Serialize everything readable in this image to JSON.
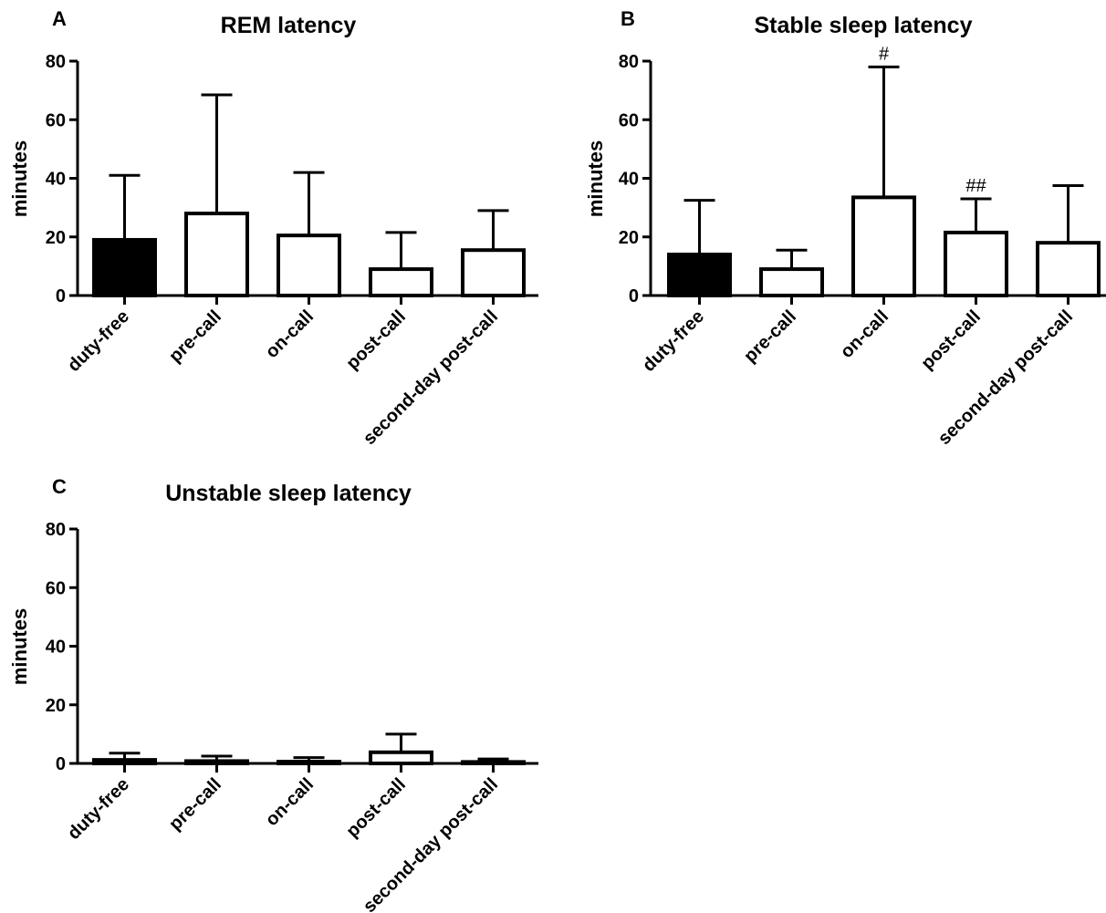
{
  "chart_data": [
    {
      "panel": "A",
      "type": "bar",
      "title": "REM latency",
      "ylabel": "minutes",
      "xlabel": "",
      "ylim": [
        0,
        80
      ],
      "yticks": [
        "0",
        "20",
        "40",
        "60",
        "80"
      ],
      "categories": [
        "duty-free",
        "pre-call",
        "on-call",
        "post-call",
        "second-day post-call"
      ],
      "values": [
        19,
        28,
        20.5,
        9,
        15.5
      ],
      "errors_upper": [
        41,
        68.5,
        42,
        21.5,
        29
      ],
      "fill": [
        "#000000",
        "#ffffff",
        "#ffffff",
        "#ffffff",
        "#ffffff"
      ],
      "annotations": [
        "",
        "",
        "",
        "",
        ""
      ],
      "grid": false
    },
    {
      "panel": "B",
      "type": "bar",
      "title": "Stable sleep latency",
      "ylabel": "minutes",
      "xlabel": "",
      "ylim": [
        0,
        80
      ],
      "yticks": [
        "0",
        "20",
        "40",
        "60",
        "80"
      ],
      "categories": [
        "duty-free",
        "pre-call",
        "on-call",
        "post-call",
        "second-day post-call"
      ],
      "values": [
        14,
        9,
        33.5,
        21.5,
        18
      ],
      "errors_upper": [
        32.5,
        15.5,
        78,
        33,
        37.5
      ],
      "fill": [
        "#000000",
        "#ffffff",
        "#ffffff",
        "#ffffff",
        "#ffffff"
      ],
      "annotations": [
        "",
        "",
        "#",
        "##",
        ""
      ],
      "grid": false
    },
    {
      "panel": "C",
      "type": "bar",
      "title": "Unstable sleep latency",
      "ylabel": "minutes",
      "xlabel": "",
      "ylim": [
        0,
        80
      ],
      "yticks": [
        "0",
        "20",
        "40",
        "60",
        "80"
      ],
      "categories": [
        "duty-free",
        "pre-call",
        "on-call",
        "post-call",
        "second-day post-call"
      ],
      "values": [
        1.2,
        0.8,
        0.6,
        3.8,
        0.5
      ],
      "errors_upper": [
        3.5,
        2.5,
        2,
        10,
        1.5
      ],
      "fill": [
        "#000000",
        "#ffffff",
        "#ffffff",
        "#ffffff",
        "#ffffff"
      ],
      "annotations": [
        "",
        "",
        "",
        "",
        ""
      ],
      "grid": false
    }
  ]
}
